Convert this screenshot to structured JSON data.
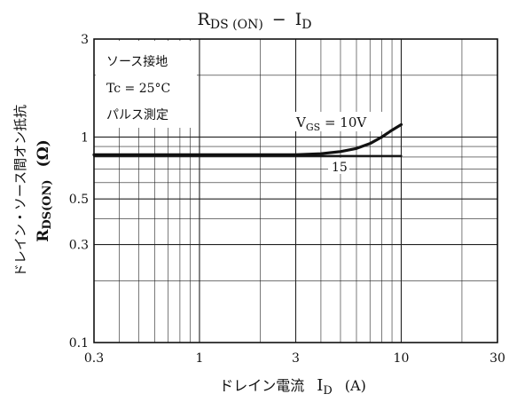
{
  "chart_data": {
    "type": "line",
    "title": {
      "main": "R",
      "sub": "DS (ON)",
      "dash": "−",
      "main2": "I",
      "sub2": "D"
    },
    "xlabel": {
      "jp": "ドレイン電流",
      "sym": "I",
      "sub": "D",
      "unit": "(A)"
    },
    "ylabel": {
      "jp": "ドレイン・ソース間オン抵抗",
      "sym": "R",
      "sub": "DS(ON)",
      "unit": "(Ω)"
    },
    "x_scale": "log",
    "y_scale": "log",
    "xlim": [
      0.3,
      30
    ],
    "ylim": [
      0.1,
      3
    ],
    "x_ticks": [
      {
        "value": 0.3,
        "label": "0.3"
      },
      {
        "value": 1,
        "label": "1"
      },
      {
        "value": 3,
        "label": "3"
      },
      {
        "value": 10,
        "label": "10"
      },
      {
        "value": 30,
        "label": "30"
      }
    ],
    "y_ticks": [
      {
        "value": 0.1,
        "label": "0.1"
      },
      {
        "value": 0.3,
        "label": "0.3"
      },
      {
        "value": 0.5,
        "label": "0.5"
      },
      {
        "value": 1,
        "label": "1"
      },
      {
        "value": 3,
        "label": "3"
      }
    ],
    "grid": true,
    "conditions": [
      "ソース接地",
      "Tc = 25°C",
      "パルス測定"
    ],
    "series": [
      {
        "name": "VGS = 10V",
        "label": {
          "main": "V",
          "sub": "GS",
          "rest": " = 10V"
        },
        "x": [
          0.3,
          1,
          2,
          3,
          4,
          5,
          6,
          7,
          8,
          9,
          10
        ],
        "y": [
          0.82,
          0.82,
          0.82,
          0.82,
          0.83,
          0.85,
          0.88,
          0.93,
          1.0,
          1.08,
          1.15
        ]
      },
      {
        "name": "15",
        "label": {
          "main": "15",
          "sub": "",
          "rest": ""
        },
        "x": [
          0.3,
          1,
          3,
          5,
          7,
          10
        ],
        "y": [
          0.81,
          0.81,
          0.81,
          0.81,
          0.81,
          0.81
        ]
      }
    ]
  }
}
